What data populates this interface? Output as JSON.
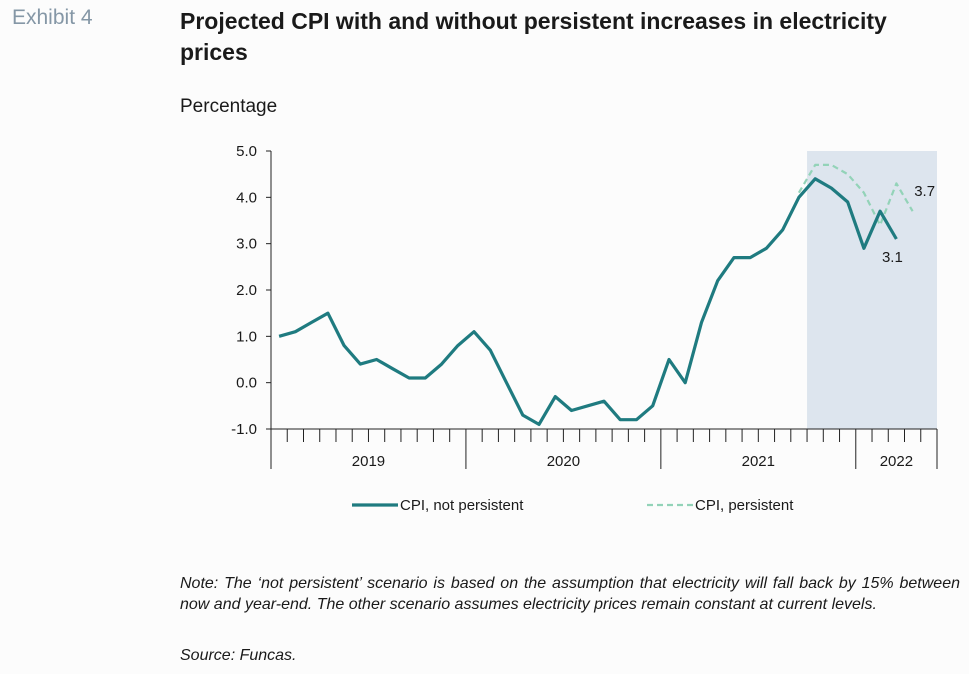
{
  "exhibit_label": "Exhibit 4",
  "chart_data": {
    "type": "line",
    "title": "Projected CPI with and without persistent increases in electricity prices",
    "unit_label": "Percentage",
    "ylim": [
      -1.0,
      5.0
    ],
    "yticks": [
      "-1.0",
      "0.0",
      "1.0",
      "2.0",
      "3.0",
      "4.0",
      "5.0"
    ],
    "x_months": [
      "2019-01",
      "2019-02",
      "2019-03",
      "2019-04",
      "2019-05",
      "2019-06",
      "2019-07",
      "2019-08",
      "2019-09",
      "2019-10",
      "2019-11",
      "2019-12",
      "2020-01",
      "2020-02",
      "2020-03",
      "2020-04",
      "2020-05",
      "2020-06",
      "2020-07",
      "2020-08",
      "2020-09",
      "2020-10",
      "2020-11",
      "2020-12",
      "2021-01",
      "2021-02",
      "2021-03",
      "2021-04",
      "2021-05",
      "2021-06",
      "2021-07",
      "2021-08",
      "2021-09",
      "2021-10",
      "2021-11",
      "2021-12",
      "2022-01",
      "2022-02",
      "2022-03",
      "2022-04",
      "2022-05"
    ],
    "year_labels": [
      "2019",
      "2020",
      "2021",
      "2022"
    ],
    "shaded_region": [
      "2021-10",
      "2022-05"
    ],
    "colors": {
      "not_persistent": "#1f7b80",
      "persistent": "#93d3b8",
      "shade": "#dde5ee"
    },
    "series": [
      {
        "name": "CPI, not persistent",
        "style": "solid",
        "values": [
          1.0,
          1.1,
          1.3,
          1.5,
          0.8,
          0.4,
          0.5,
          0.3,
          0.1,
          0.1,
          0.4,
          0.8,
          1.1,
          0.7,
          0.0,
          -0.7,
          -0.9,
          -0.3,
          -0.6,
          -0.5,
          -0.4,
          -0.8,
          -0.8,
          -0.5,
          0.5,
          0.0,
          1.3,
          2.2,
          2.7,
          2.7,
          2.9,
          3.3,
          4.0,
          4.4,
          4.2,
          3.9,
          2.9,
          3.7,
          3.1
        ],
        "end_label": "3.1"
      },
      {
        "name": "CPI, persistent",
        "style": "dashed",
        "start_index": 32,
        "values": [
          4.1,
          4.7,
          4.7,
          4.5,
          4.1,
          3.4,
          4.3,
          3.7
        ],
        "end_label": "3.7"
      }
    ]
  },
  "note": "Note: The ‘not persistent’ scenario is based on the assumption that electricity will fall back by 15% between now and year-end. The other scenario assumes electricity prices remain constant at current levels.",
  "source": "Source: Funcas."
}
